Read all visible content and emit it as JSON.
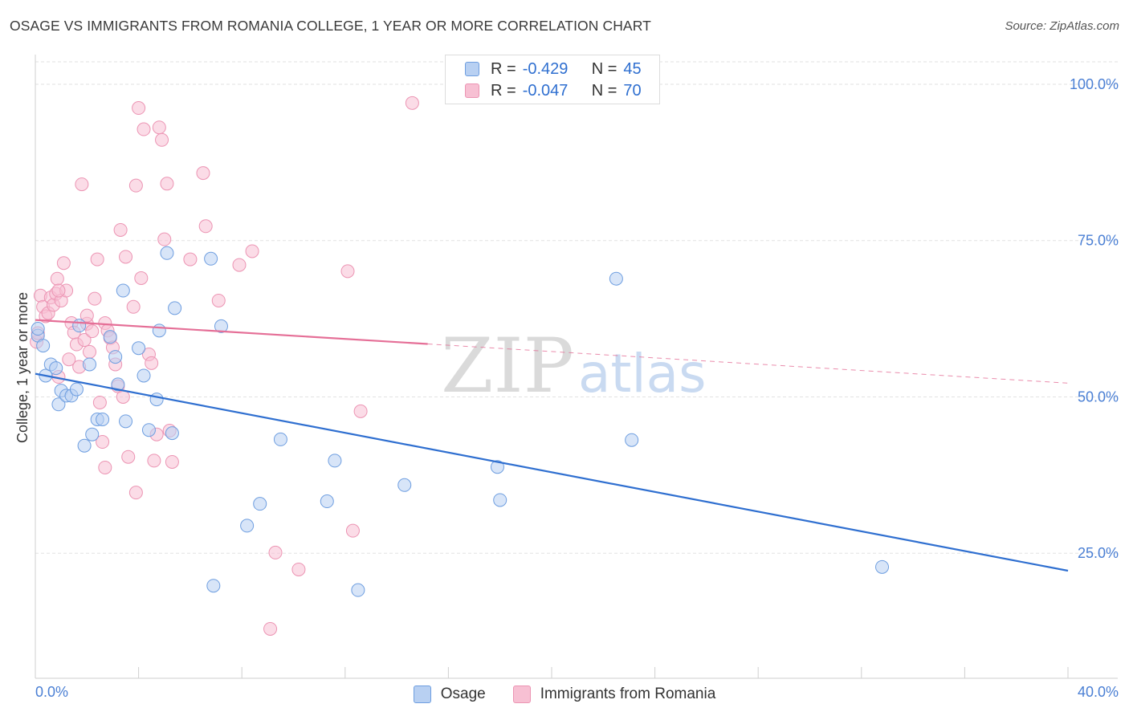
{
  "title": "OSAGE VS IMMIGRANTS FROM ROMANIA COLLEGE, 1 YEAR OR MORE CORRELATION CHART",
  "source": "Source: ZipAtlas.com",
  "watermark": {
    "zip": "ZIP",
    "atlas": "atlas"
  },
  "legend": {
    "rows": [
      {
        "r_label": "R =",
        "r_value": "-0.429",
        "n_label": "N =",
        "n_value": "45"
      },
      {
        "r_label": "R =",
        "r_value": "-0.047",
        "n_label": "N =",
        "n_value": "70"
      }
    ]
  },
  "bottom_legend": {
    "series1": "Osage",
    "series2": "Immigrants from Romania"
  },
  "colors": {
    "osage_fill": "#b8d0f2",
    "osage_stroke": "#6e9ee0",
    "osage_line": "#2f6fd0",
    "romania_fill": "#f7c0d3",
    "romania_stroke": "#ec94b3",
    "romania_line": "#e56f97",
    "tick_text": "#4a7fd4",
    "grid": "#e2e2e2"
  },
  "chart_data": {
    "type": "scatter",
    "title": "OSAGE VS IMMIGRANTS FROM ROMANIA COLLEGE, 1 YEAR OR MORE CORRELATION CHART",
    "xlabel": "",
    "ylabel": "College, 1 year or more",
    "xlim": [
      0,
      40
    ],
    "ylim": [
      5,
      105
    ],
    "x_tick_labels": [
      "0.0%",
      "40.0%"
    ],
    "y_ticks": [
      25,
      50,
      75,
      100
    ],
    "y_tick_labels": [
      "25.0%",
      "50.0%",
      "75.0%",
      "100.0%"
    ],
    "series": [
      {
        "name": "Osage",
        "r": -0.429,
        "n": 45,
        "trend": {
          "x_start": 0,
          "y_start": 53.7,
          "x_end": 40,
          "y_end": 22.2,
          "dashed_from": null
        },
        "points": [
          [
            0.1,
            59.8
          ],
          [
            0.1,
            60.9
          ],
          [
            0.3,
            58.2
          ],
          [
            0.4,
            53.4
          ],
          [
            0.6,
            55.2
          ],
          [
            0.8,
            54.6
          ],
          [
            0.9,
            48.8
          ],
          [
            1.0,
            51.0
          ],
          [
            1.2,
            50.2
          ],
          [
            1.4,
            50.2
          ],
          [
            1.6,
            51.2
          ],
          [
            1.7,
            61.4
          ],
          [
            1.9,
            42.2
          ],
          [
            2.1,
            55.2
          ],
          [
            2.2,
            44.0
          ],
          [
            2.4,
            46.4
          ],
          [
            2.6,
            46.4
          ],
          [
            2.9,
            59.6
          ],
          [
            3.1,
            56.4
          ],
          [
            3.2,
            52.0
          ],
          [
            3.4,
            67.0
          ],
          [
            3.5,
            46.1
          ],
          [
            4.0,
            57.8
          ],
          [
            4.2,
            53.4
          ],
          [
            4.4,
            44.7
          ],
          [
            4.7,
            49.6
          ],
          [
            4.8,
            60.6
          ],
          [
            5.1,
            73.0
          ],
          [
            5.3,
            44.2
          ],
          [
            5.4,
            64.2
          ],
          [
            6.8,
            72.1
          ],
          [
            6.9,
            19.8
          ],
          [
            7.2,
            61.3
          ],
          [
            8.2,
            29.4
          ],
          [
            8.7,
            32.9
          ],
          [
            9.5,
            43.2
          ],
          [
            11.3,
            33.3
          ],
          [
            11.6,
            39.8
          ],
          [
            12.5,
            19.1
          ],
          [
            14.3,
            35.9
          ],
          [
            17.9,
            38.8
          ],
          [
            18.0,
            33.5
          ],
          [
            22.5,
            68.9
          ],
          [
            23.1,
            43.1
          ],
          [
            32.8,
            22.8
          ]
        ]
      },
      {
        "name": "Immigrants from Romania",
        "r": -0.047,
        "n": 70,
        "trend": {
          "x_start": 0,
          "y_start": 62.3,
          "x_end": 40,
          "y_end": 52.2,
          "dashed_from": 15.2
        },
        "points": [
          [
            0.05,
            58.8
          ],
          [
            0.1,
            60.2
          ],
          [
            0.2,
            66.2
          ],
          [
            0.3,
            64.4
          ],
          [
            0.4,
            62.9
          ],
          [
            0.5,
            63.4
          ],
          [
            0.6,
            65.9
          ],
          [
            0.7,
            64.7
          ],
          [
            0.8,
            66.5
          ],
          [
            0.85,
            68.9
          ],
          [
            0.9,
            53.2
          ],
          [
            1.0,
            65.4
          ],
          [
            1.1,
            71.4
          ],
          [
            1.2,
            67.0
          ],
          [
            1.4,
            61.8
          ],
          [
            1.5,
            60.3
          ],
          [
            1.6,
            58.4
          ],
          [
            1.7,
            54.8
          ],
          [
            1.8,
            84.0
          ],
          [
            1.9,
            59.1
          ],
          [
            2.0,
            61.7
          ],
          [
            2.1,
            57.2
          ],
          [
            2.2,
            60.5
          ],
          [
            2.3,
            65.7
          ],
          [
            2.4,
            72.0
          ],
          [
            2.5,
            49.1
          ],
          [
            2.6,
            42.8
          ],
          [
            2.7,
            61.8
          ],
          [
            2.8,
            60.6
          ],
          [
            2.9,
            59.4
          ],
          [
            3.0,
            57.9
          ],
          [
            3.1,
            55.2
          ],
          [
            3.2,
            51.7
          ],
          [
            3.3,
            76.7
          ],
          [
            3.5,
            72.4
          ],
          [
            3.6,
            40.4
          ],
          [
            3.8,
            64.4
          ],
          [
            3.9,
            34.7
          ],
          [
            4.0,
            96.2
          ],
          [
            4.1,
            69.0
          ],
          [
            4.2,
            92.8
          ],
          [
            4.4,
            56.8
          ],
          [
            4.5,
            55.4
          ],
          [
            4.6,
            39.8
          ],
          [
            4.8,
            93.1
          ],
          [
            4.9,
            91.1
          ],
          [
            5.0,
            75.2
          ],
          [
            5.1,
            84.1
          ],
          [
            5.2,
            44.6
          ],
          [
            5.3,
            39.6
          ],
          [
            6.0,
            72.0
          ],
          [
            6.5,
            85.8
          ],
          [
            6.6,
            77.3
          ],
          [
            7.1,
            65.4
          ],
          [
            7.9,
            71.1
          ],
          [
            8.4,
            73.3
          ],
          [
            9.1,
            12.9
          ],
          [
            9.3,
            25.1
          ],
          [
            10.2,
            22.4
          ],
          [
            12.1,
            70.1
          ],
          [
            12.3,
            28.6
          ],
          [
            12.6,
            47.7
          ],
          [
            14.6,
            97.0
          ],
          [
            2.7,
            38.7
          ],
          [
            3.4,
            50.0
          ],
          [
            1.3,
            56.0
          ],
          [
            2.0,
            63.0
          ],
          [
            0.9,
            67.0
          ],
          [
            3.9,
            83.8
          ],
          [
            4.7,
            44.0
          ]
        ]
      }
    ]
  }
}
